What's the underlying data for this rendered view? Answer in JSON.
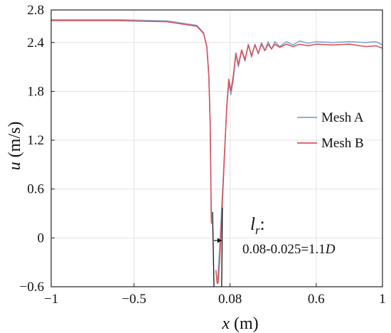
{
  "chart_data": {
    "type": "line",
    "title": "",
    "xlabel": {
      "var": "x",
      "unit": " (m)"
    },
    "ylabel": {
      "var": "u",
      "unit": " (m/s)"
    },
    "xlim": [
      -1,
      1
    ],
    "ylim": [
      -0.6,
      2.8
    ],
    "grid": true,
    "x_ticks": [
      {
        "value": -1,
        "label": "−1"
      },
      {
        "value": -0.5,
        "label": "−0.5"
      },
      {
        "value": 0.08,
        "label": "0.08"
      },
      {
        "value": 0.6,
        "label": "0.6"
      },
      {
        "value": 1,
        "label": "1"
      }
    ],
    "y_ticks": [
      {
        "value": -0.6,
        "label": "−0.6"
      },
      {
        "value": 0,
        "label": "0"
      },
      {
        "value": 0.6,
        "label": "0.6"
      },
      {
        "value": 1.2,
        "label": "1.2"
      },
      {
        "value": 1.8,
        "label": "1.8"
      },
      {
        "value": 2.4,
        "label": "2.4"
      },
      {
        "value": 2.8,
        "label": "2.8"
      }
    ],
    "legend": {
      "placement": "right"
    },
    "series": [
      {
        "name": "Mesh A",
        "color": "#7fa6cf",
        "segments": [
          [
            [
              -1,
              2.68
            ],
            [
              -0.6,
              2.68
            ],
            [
              -0.3,
              2.665
            ],
            [
              -0.12,
              2.61
            ],
            [
              -0.08,
              2.52
            ],
            [
              -0.06,
              2.35
            ],
            [
              -0.048,
              2.0
            ],
            [
              -0.04,
              1.4
            ],
            [
              -0.036,
              0.7
            ],
            [
              -0.033,
              0.2
            ]
          ],
          [
            [
              0.0,
              -0.52
            ],
            [
              0.005,
              -0.5
            ],
            [
              0.015,
              -0.2
            ],
            [
              0.03,
              0.4
            ],
            [
              0.045,
              1.0
            ],
            [
              0.06,
              1.6
            ],
            [
              0.072,
              1.9
            ],
            [
              0.085,
              1.76
            ],
            [
              0.1,
              1.95
            ],
            [
              0.115,
              2.26
            ],
            [
              0.13,
              2.1
            ],
            [
              0.15,
              2.3
            ],
            [
              0.17,
              2.17
            ],
            [
              0.19,
              2.38
            ],
            [
              0.21,
              2.22
            ],
            [
              0.23,
              2.38
            ],
            [
              0.25,
              2.26
            ],
            [
              0.27,
              2.4
            ],
            [
              0.29,
              2.3
            ],
            [
              0.31,
              2.41
            ],
            [
              0.33,
              2.32
            ],
            [
              0.35,
              2.41
            ],
            [
              0.38,
              2.35
            ],
            [
              0.42,
              2.41
            ],
            [
              0.46,
              2.37
            ],
            [
              0.5,
              2.42
            ],
            [
              0.55,
              2.39
            ],
            [
              0.6,
              2.41
            ],
            [
              0.7,
              2.4
            ],
            [
              0.8,
              2.41
            ],
            [
              0.9,
              2.4
            ],
            [
              0.96,
              2.41
            ],
            [
              1.0,
              2.37
            ]
          ]
        ]
      },
      {
        "name": "Mesh B",
        "color": "#d9545e",
        "segments": [
          [
            [
              -1,
              2.67
            ],
            [
              -0.6,
              2.67
            ],
            [
              -0.3,
              2.655
            ],
            [
              -0.12,
              2.6
            ],
            [
              -0.08,
              2.51
            ],
            [
              -0.06,
              2.34
            ],
            [
              -0.048,
              1.98
            ],
            [
              -0.04,
              1.38
            ],
            [
              -0.036,
              0.68
            ],
            [
              -0.033,
              0.18
            ]
          ],
          [
            [
              -0.005,
              -0.4
            ],
            [
              0.002,
              -0.56
            ],
            [
              0.008,
              -0.55
            ],
            [
              0.018,
              -0.25
            ],
            [
              0.032,
              0.38
            ],
            [
              0.046,
              1.0
            ],
            [
              0.06,
              1.62
            ],
            [
              0.072,
              1.95
            ],
            [
              0.085,
              1.81
            ],
            [
              0.1,
              2.0
            ],
            [
              0.115,
              2.27
            ],
            [
              0.13,
              2.13
            ],
            [
              0.15,
              2.31
            ],
            [
              0.17,
              2.19
            ],
            [
              0.19,
              2.37
            ],
            [
              0.21,
              2.24
            ],
            [
              0.23,
              2.37
            ],
            [
              0.25,
              2.27
            ],
            [
              0.27,
              2.38
            ],
            [
              0.29,
              2.3
            ],
            [
              0.31,
              2.38
            ],
            [
              0.33,
              2.32
            ],
            [
              0.35,
              2.38
            ],
            [
              0.38,
              2.34
            ],
            [
              0.42,
              2.38
            ],
            [
              0.46,
              2.35
            ],
            [
              0.5,
              2.38
            ],
            [
              0.55,
              2.36
            ],
            [
              0.6,
              2.38
            ],
            [
              0.7,
              2.37
            ],
            [
              0.8,
              2.38
            ],
            [
              0.9,
              2.35
            ],
            [
              0.96,
              2.36
            ],
            [
              1.0,
              2.33
            ]
          ]
        ]
      }
    ],
    "annotations": [
      {
        "lr_symbol": "l",
        "lr_subscript": "r",
        "lr_colon": ":",
        "formula": "0.08-0.025=1.1",
        "formula_var": "D",
        "marker_x": [
          -0.0,
          0.025
        ]
      }
    ]
  }
}
